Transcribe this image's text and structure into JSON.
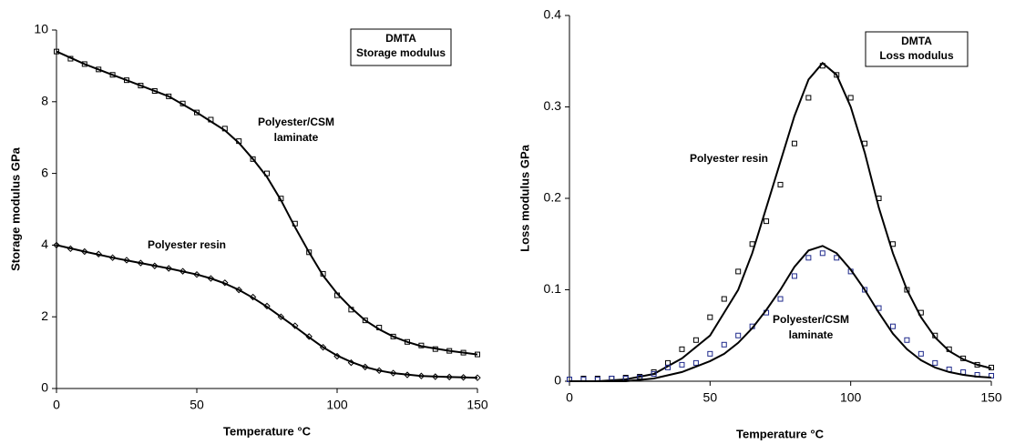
{
  "chart_data": [
    {
      "type": "scatter",
      "x_label": "Temperature   °C",
      "y_label": "Storage modulus   GPa",
      "box_text": [
        "DMTA",
        "Storage modulus"
      ],
      "annotations": [
        [
          "Polyester/CSM",
          "laminate"
        ],
        [
          "Polyester resin"
        ]
      ],
      "xlim": [
        0,
        150
      ],
      "xticks": [
        0,
        50,
        100,
        150
      ],
      "ylim": [
        0,
        10
      ],
      "yticks": [
        0,
        2,
        4,
        6,
        8,
        10
      ],
      "series": [
        {
          "marker": "square",
          "color": "#000000",
          "x": [
            0,
            5,
            10,
            15,
            20,
            25,
            30,
            35,
            40,
            45,
            50,
            55,
            60,
            65,
            70,
            75,
            80,
            85,
            90,
            95,
            100,
            105,
            110,
            115,
            120,
            125,
            130,
            135,
            140,
            145,
            150
          ],
          "values": [
            9.4,
            9.2,
            9.05,
            8.9,
            8.75,
            8.6,
            8.45,
            8.3,
            8.15,
            7.95,
            7.7,
            7.5,
            7.25,
            6.9,
            6.4,
            6.0,
            5.3,
            4.6,
            3.8,
            3.2,
            2.6,
            2.2,
            1.9,
            1.7,
            1.45,
            1.3,
            1.2,
            1.1,
            1.05,
            1.0,
            0.95
          ]
        },
        {
          "marker": "none",
          "color": "#000000",
          "x": [
            0,
            10,
            20,
            30,
            40,
            50,
            55,
            60,
            65,
            70,
            75,
            80,
            85,
            90,
            95,
            100,
            105,
            110,
            115,
            120,
            125,
            130,
            140,
            150
          ],
          "values": [
            9.4,
            9.05,
            8.75,
            8.45,
            8.15,
            7.7,
            7.45,
            7.2,
            6.85,
            6.4,
            5.9,
            5.25,
            4.5,
            3.8,
            3.15,
            2.65,
            2.25,
            1.9,
            1.65,
            1.45,
            1.3,
            1.18,
            1.05,
            0.95
          ]
        },
        {
          "marker": "diamond",
          "color": "#000000",
          "x": [
            0,
            5,
            10,
            15,
            20,
            25,
            30,
            35,
            40,
            45,
            50,
            55,
            60,
            65,
            70,
            75,
            80,
            85,
            90,
            95,
            100,
            105,
            110,
            115,
            120,
            125,
            130,
            135,
            140,
            145,
            150
          ],
          "values": [
            4.0,
            3.9,
            3.82,
            3.75,
            3.65,
            3.58,
            3.5,
            3.42,
            3.35,
            3.27,
            3.18,
            3.07,
            2.95,
            2.75,
            2.55,
            2.3,
            2.0,
            1.75,
            1.45,
            1.15,
            0.9,
            0.72,
            0.6,
            0.5,
            0.43,
            0.38,
            0.35,
            0.33,
            0.32,
            0.31,
            0.3
          ]
        },
        {
          "marker": "none",
          "color": "#000000",
          "x": [
            0,
            10,
            20,
            30,
            40,
            50,
            55,
            60,
            65,
            70,
            75,
            80,
            85,
            90,
            95,
            100,
            105,
            110,
            115,
            120,
            130,
            140,
            150
          ],
          "values": [
            4.0,
            3.82,
            3.65,
            3.5,
            3.35,
            3.18,
            3.07,
            2.93,
            2.75,
            2.53,
            2.28,
            2.0,
            1.72,
            1.43,
            1.15,
            0.92,
            0.74,
            0.6,
            0.5,
            0.43,
            0.35,
            0.32,
            0.3
          ]
        }
      ]
    },
    {
      "type": "scatter",
      "x_label": "Temperature   °C",
      "y_label": "Loss modulus   GPa",
      "box_text": [
        "DMTA",
        "Loss modulus"
      ],
      "annotations": [
        [
          "Polyester resin"
        ],
        [
          "Polyester/CSM",
          "laminate"
        ]
      ],
      "xlim": [
        0,
        150
      ],
      "xticks": [
        0,
        50,
        100,
        150
      ],
      "ylim": [
        0,
        0.4
      ],
      "yticks": [
        0,
        0.1,
        0.2,
        0.3,
        0.4
      ],
      "series": [
        {
          "marker": "square",
          "color": "#000000",
          "x": [
            0,
            5,
            10,
            15,
            20,
            25,
            30,
            35,
            40,
            45,
            50,
            55,
            60,
            65,
            70,
            75,
            80,
            85,
            90,
            95,
            100,
            105,
            110,
            115,
            120,
            125,
            130,
            135,
            140,
            145,
            150
          ],
          "values": [
            0.002,
            0.003,
            0.003,
            0.003,
            0.004,
            0.005,
            0.01,
            0.02,
            0.035,
            0.045,
            0.07,
            0.09,
            0.12,
            0.15,
            0.175,
            0.215,
            0.26,
            0.31,
            0.345,
            0.335,
            0.31,
            0.26,
            0.2,
            0.15,
            0.1,
            0.075,
            0.05,
            0.035,
            0.025,
            0.018,
            0.015
          ]
        },
        {
          "marker": "none",
          "color": "#000000",
          "x": [
            0,
            10,
            20,
            30,
            40,
            50,
            55,
            60,
            65,
            70,
            75,
            80,
            85,
            90,
            95,
            100,
            105,
            110,
            115,
            120,
            125,
            130,
            135,
            140,
            145,
            150
          ],
          "values": [
            0,
            0,
            0.002,
            0.008,
            0.025,
            0.05,
            0.075,
            0.1,
            0.14,
            0.19,
            0.24,
            0.29,
            0.33,
            0.348,
            0.335,
            0.3,
            0.25,
            0.19,
            0.14,
            0.1,
            0.07,
            0.048,
            0.033,
            0.024,
            0.018,
            0.014
          ]
        },
        {
          "marker": "square",
          "color": "#1f2a8c",
          "x": [
            0,
            5,
            10,
            15,
            20,
            25,
            30,
            35,
            40,
            45,
            50,
            55,
            60,
            65,
            70,
            75,
            80,
            85,
            90,
            95,
            100,
            105,
            110,
            115,
            120,
            125,
            130,
            135,
            140,
            145,
            150
          ],
          "values": [
            0.002,
            0.002,
            0.002,
            0.003,
            0.003,
            0.004,
            0.008,
            0.015,
            0.018,
            0.02,
            0.03,
            0.04,
            0.05,
            0.06,
            0.075,
            0.09,
            0.115,
            0.135,
            0.14,
            0.135,
            0.12,
            0.1,
            0.08,
            0.06,
            0.045,
            0.03,
            0.02,
            0.013,
            0.01,
            0.007,
            0.006
          ]
        },
        {
          "marker": "none",
          "color": "#000000",
          "x": [
            0,
            20,
            30,
            40,
            50,
            55,
            60,
            65,
            70,
            75,
            80,
            85,
            90,
            95,
            100,
            105,
            110,
            115,
            120,
            125,
            130,
            135,
            140,
            145,
            150
          ],
          "values": [
            0,
            0,
            0.003,
            0.01,
            0.022,
            0.03,
            0.042,
            0.058,
            0.078,
            0.1,
            0.125,
            0.143,
            0.148,
            0.14,
            0.122,
            0.1,
            0.075,
            0.052,
            0.035,
            0.023,
            0.015,
            0.01,
            0.007,
            0.005,
            0.004
          ]
        }
      ]
    }
  ]
}
